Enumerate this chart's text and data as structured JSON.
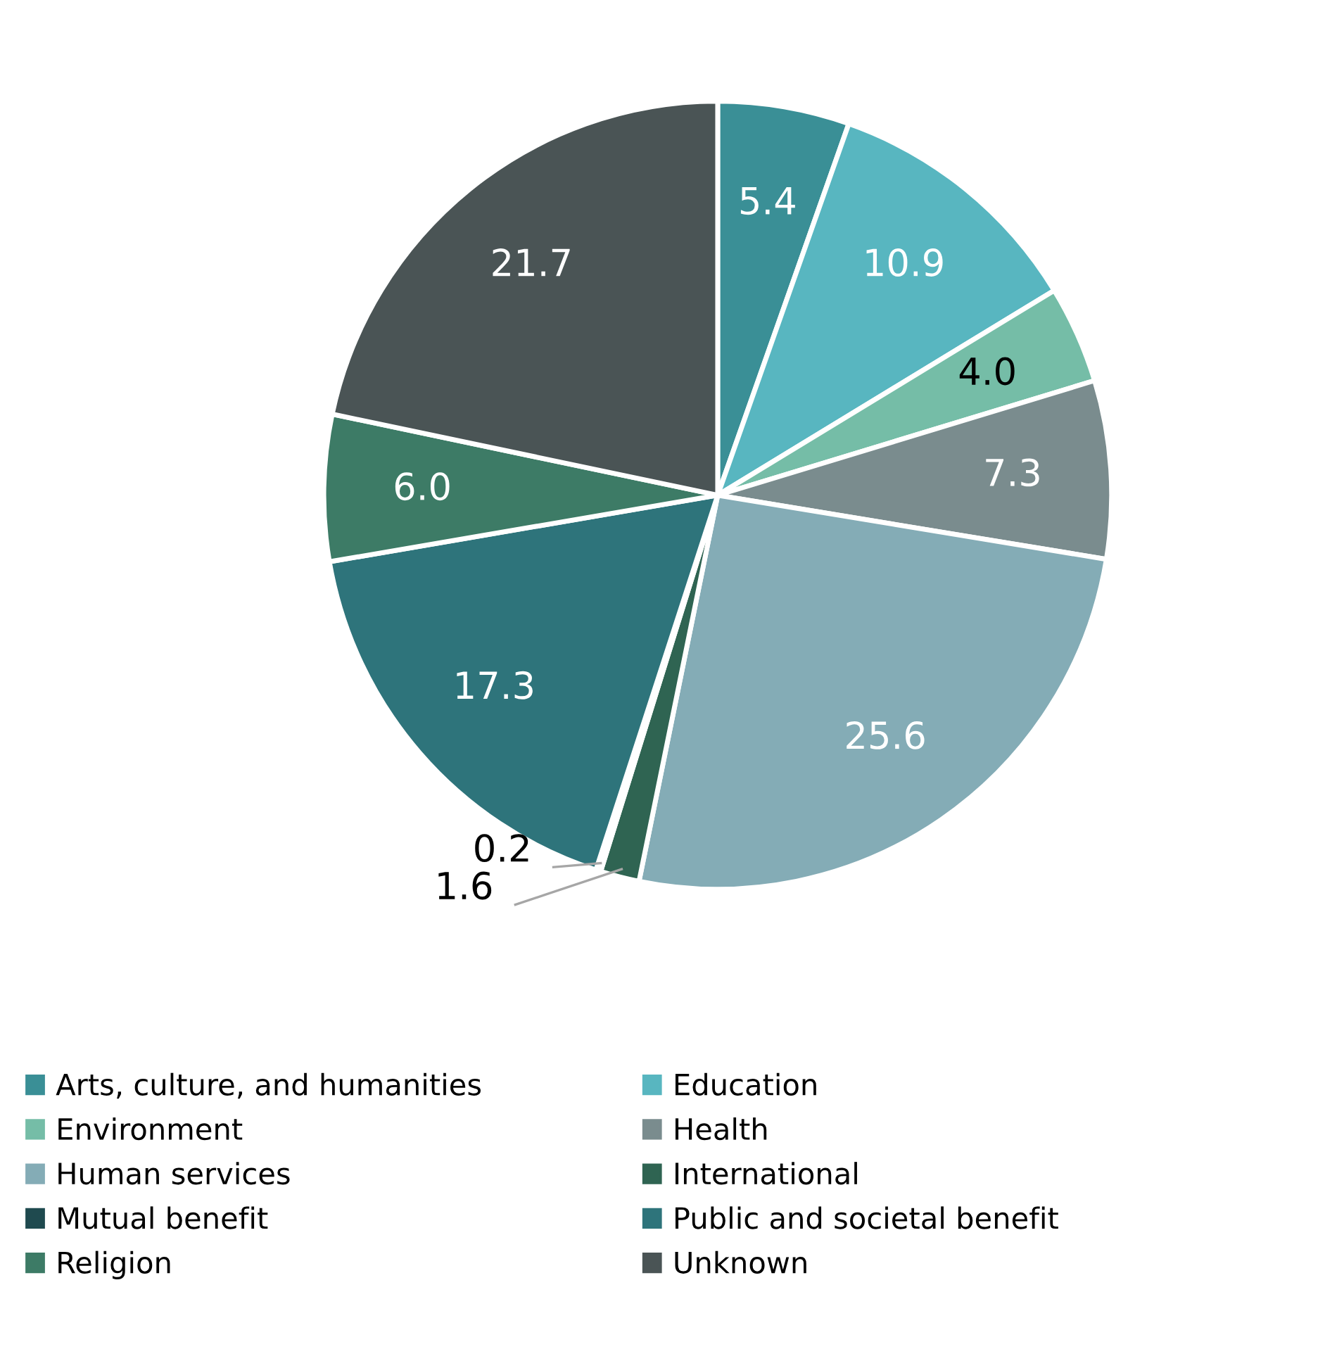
{
  "chart_data": {
    "type": "pie",
    "categories": [
      "Arts, culture, and humanities",
      "Education",
      "Environment",
      "Health",
      "Human services",
      "International",
      "Mutual benefit",
      "Public and societal benefit",
      "Religion",
      "Unknown"
    ],
    "values": [
      5.4,
      10.9,
      4.0,
      7.3,
      25.6,
      1.6,
      0.2,
      17.3,
      6.0,
      21.7
    ],
    "colors": [
      "#3a8f96",
      "#58b6c0",
      "#75bda7",
      "#7a8c8e",
      "#84acb6",
      "#2f6452",
      "#1f4a4f",
      "#2e747b",
      "#3d7b66",
      "#4a5455"
    ],
    "value_labels": [
      "5.4",
      "10.9",
      "4.0",
      "7.3",
      "25.6",
      "1.6",
      "0.2",
      "17.3",
      "6.0",
      "21.7"
    ],
    "legend": "bottom"
  }
}
